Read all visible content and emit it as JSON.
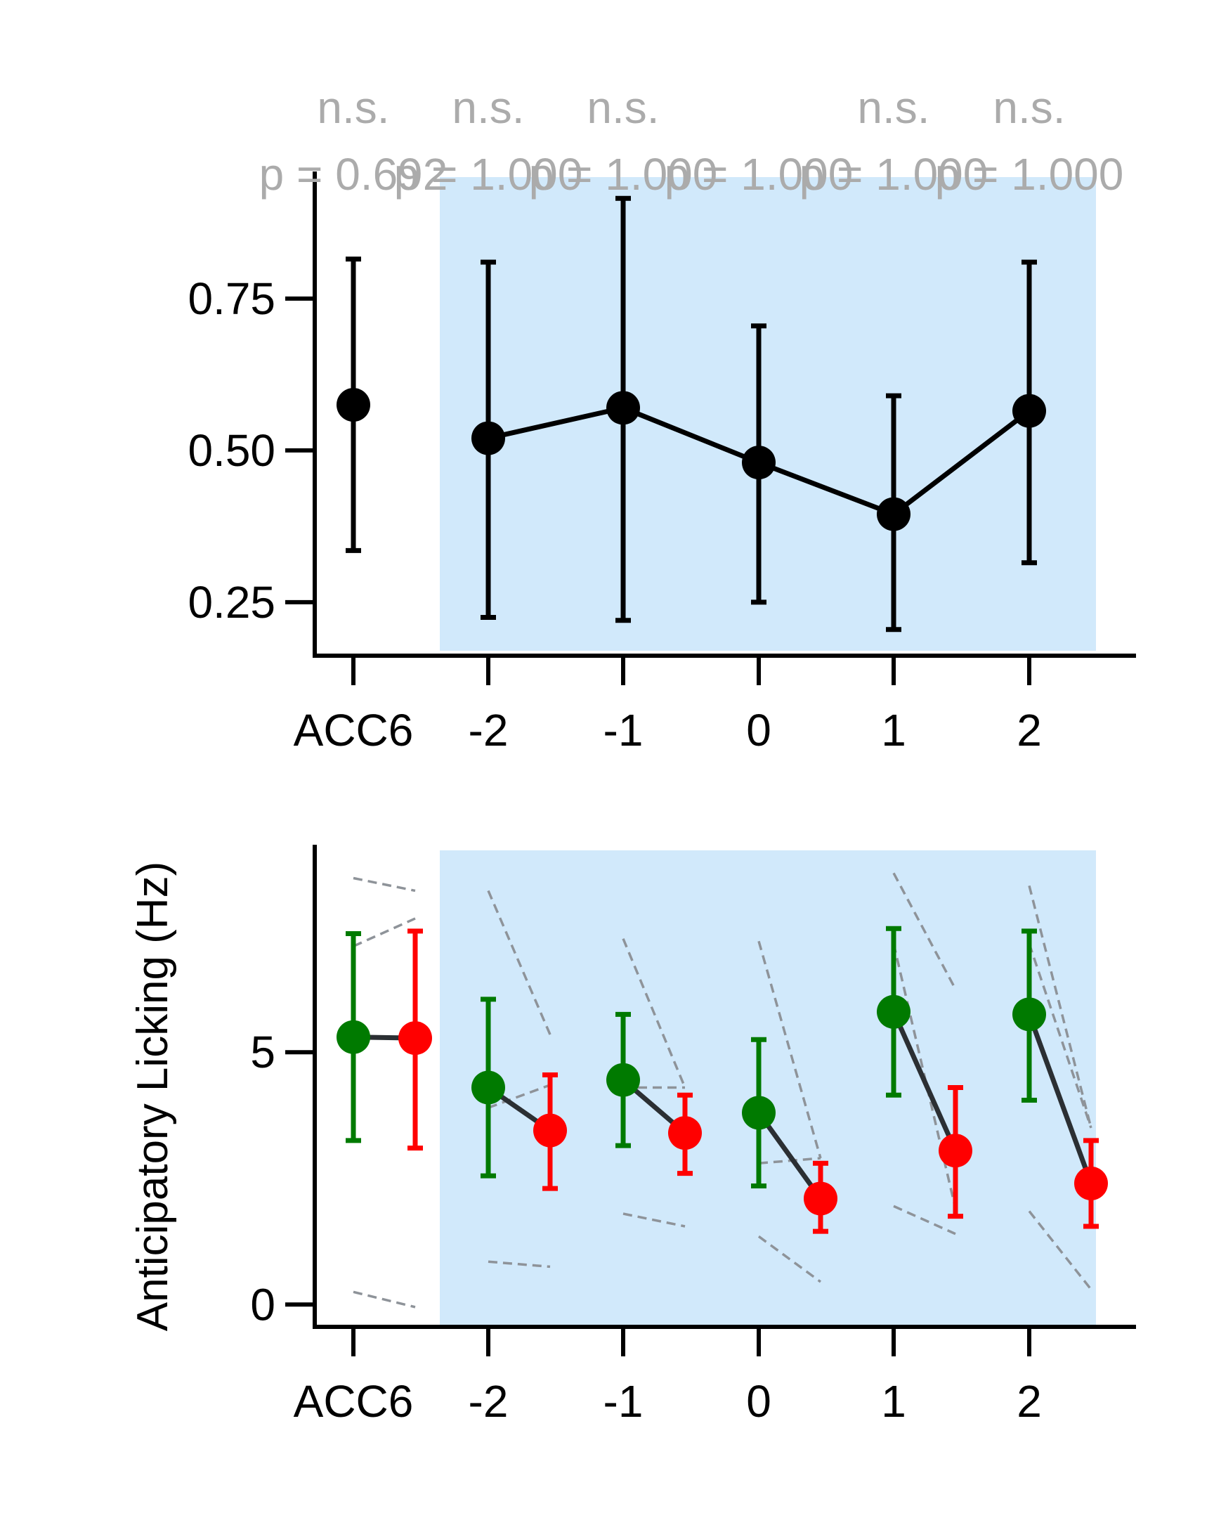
{
  "colors": {
    "shade": "#d1e9fb",
    "axis": "#000000",
    "mean_line": "#000000",
    "paired_line": "#2b2f33",
    "green": "#007a00",
    "red": "#ff0000",
    "subject_line": "#8e9399",
    "annotation": "#ababab"
  },
  "chart_data": [
    {
      "type": "line",
      "panel": "top",
      "categories": [
        "ACC6",
        "-2",
        "-1",
        "0",
        "1",
        "2"
      ],
      "yticks": [
        "0.25",
        "0.50",
        "0.75"
      ],
      "ylim": [
        0.17,
        0.95
      ],
      "grid": false,
      "shaded_categories": [
        "-2",
        "-1",
        "0",
        "1",
        "2"
      ],
      "series": [
        {
          "values": [
            0.575,
            0.52,
            0.57,
            0.48,
            0.395,
            0.565
          ],
          "err_low": [
            0.335,
            0.225,
            0.22,
            0.25,
            0.205,
            0.315
          ],
          "err_high": [
            0.815,
            0.81,
            0.915,
            0.705,
            0.59,
            0.81
          ]
        }
      ],
      "annotations": [
        {
          "category": "ACC6",
          "sig": "n.s.",
          "p": "p = 0.692"
        },
        {
          "category": "-2",
          "sig": "n.s.",
          "p": "p = 1.000"
        },
        {
          "category": "-1",
          "sig": "n.s.",
          "p": "p = 1.000"
        },
        {
          "category": "0",
          "sig": "",
          "p": "p = 1.000"
        },
        {
          "category": "1",
          "sig": "n.s.",
          "p": "p = 1.000"
        },
        {
          "category": "2",
          "sig": "n.s.",
          "p": "p = 1.000"
        }
      ]
    },
    {
      "type": "line",
      "panel": "bottom",
      "categories": [
        "ACC6",
        "-2",
        "-1",
        "0",
        "1",
        "2"
      ],
      "ylabel": "Anticipatory Licking (Hz)",
      "yticks": [
        "0",
        "5"
      ],
      "ylim": [
        -0.4,
        9.0
      ],
      "grid": false,
      "shaded_categories": [
        "-2",
        "-1",
        "0",
        "1",
        "2"
      ],
      "series": [
        {
          "color": "green",
          "values": [
            5.3,
            4.3,
            4.45,
            3.8,
            5.8,
            5.75
          ],
          "err_low": [
            3.25,
            2.55,
            3.15,
            2.35,
            4.15,
            4.05
          ],
          "err_high": [
            7.35,
            6.05,
            5.75,
            5.25,
            7.45,
            7.4
          ]
        },
        {
          "color": "red",
          "values": [
            5.28,
            3.45,
            3.4,
            2.1,
            3.05,
            2.4
          ],
          "err_low": [
            3.1,
            2.3,
            2.6,
            1.45,
            1.75,
            1.55
          ],
          "err_high": [
            7.4,
            4.55,
            4.15,
            2.8,
            4.3,
            3.25
          ]
        }
      ],
      "subject_lines": [
        [
          [
            8.45,
            8.2
          ],
          [
            7.1,
            7.65
          ],
          [
            0.25,
            -0.05
          ]
        ],
        [
          [
            8.2,
            5.35
          ],
          [
            3.9,
            4.35
          ],
          [
            0.85,
            0.75
          ]
        ],
        [
          [
            7.25,
            4.3
          ],
          [
            4.3,
            4.3
          ],
          [
            1.8,
            1.55
          ]
        ],
        [
          [
            7.2,
            2.9
          ],
          [
            2.8,
            2.9
          ],
          [
            1.35,
            0.45
          ]
        ],
        [
          [
            8.55,
            6.25
          ],
          [
            7.15,
            1.9
          ],
          [
            1.95,
            1.4
          ]
        ],
        [
          [
            8.3,
            3.5
          ],
          [
            7.15,
            3.5
          ],
          [
            1.85,
            0.3
          ]
        ]
      ]
    }
  ]
}
